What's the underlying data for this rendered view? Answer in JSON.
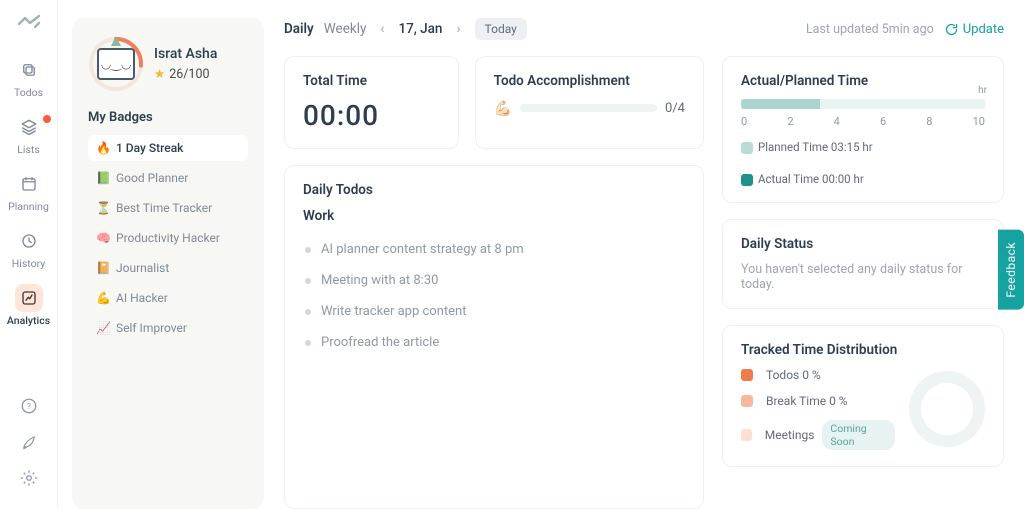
{
  "colors": {
    "accent": "#17a2a2",
    "nav_active_bg": "#ffe6d9",
    "border": "#edf0f2",
    "muted": "#8e9aa5",
    "planned_sw": "#b9dcd7",
    "actual_sw": "#1f8f8f",
    "dist_todos": "#f27b4b",
    "dist_break": "#f7b89c",
    "dist_meet": "#fde0d1"
  },
  "nav": {
    "items": [
      {
        "label": "Todos",
        "icon": "copy"
      },
      {
        "label": "Lists",
        "icon": "layers",
        "has_dot": true
      },
      {
        "label": "Planning",
        "icon": "calendar"
      },
      {
        "label": "History",
        "icon": "clock"
      },
      {
        "label": "Analytics",
        "icon": "analytics",
        "active": true
      }
    ]
  },
  "profile": {
    "name": "Israt Asha",
    "score": "26/100",
    "ring_progress": 0.26,
    "ring_color": "#f2805e",
    "badges_title": "My Badges",
    "badges": [
      {
        "icon": "🔥",
        "label": "1 Day Streak",
        "hot": true
      },
      {
        "icon": "📗",
        "label": "Good Planner"
      },
      {
        "icon": "⏳",
        "label": "Best Time Tracker"
      },
      {
        "icon": "🧠",
        "label": "Productivity Hacker"
      },
      {
        "icon": "📔",
        "label": "Journalist"
      },
      {
        "icon": "💪",
        "label": "AI Hacker"
      },
      {
        "icon": "📈",
        "label": "Self Improver"
      }
    ]
  },
  "topbar": {
    "tabs": {
      "daily": "Daily",
      "weekly": "Weekly"
    },
    "date": "17, Jan",
    "today": "Today",
    "updated": "Last updated 5min ago",
    "update_label": "Update"
  },
  "total_time": {
    "title": "Total Time",
    "value": "00:00"
  },
  "accomplishment": {
    "title": "Todo Accomplishment",
    "count": "0/4",
    "progress": 0
  },
  "daily_todos": {
    "title": "Daily Todos",
    "section": "Work",
    "items": [
      "AI planner content strategy at 8 pm",
      "Meeting with at 8:30",
      "Write tracker app content",
      "Proofread the article"
    ]
  },
  "actual_planned": {
    "title": "Actual/Planned Time",
    "planned_hr": 3.25,
    "actual_hr": 0,
    "axis_max": 10,
    "axis_ticks": [
      "0",
      "2",
      "4",
      "6",
      "8",
      "10"
    ],
    "unit": "hr",
    "planned_label": "Planned Time 03:15 hr",
    "actual_label": "Actual Time 00:00 hr"
  },
  "daily_status": {
    "title": "Daily Status",
    "text": "You haven't selected any daily status for today."
  },
  "distribution": {
    "title": "Tracked Time Distribution",
    "items": [
      {
        "label": "Todos 0 %",
        "color": "#f27b4b"
      },
      {
        "label": "Break Time 0 %",
        "color": "#f7b89c"
      },
      {
        "label": "Meetings",
        "color": "#fde0d1",
        "coming_soon": "Coming Soon"
      }
    ]
  },
  "feedback": {
    "label": "Feedback"
  }
}
